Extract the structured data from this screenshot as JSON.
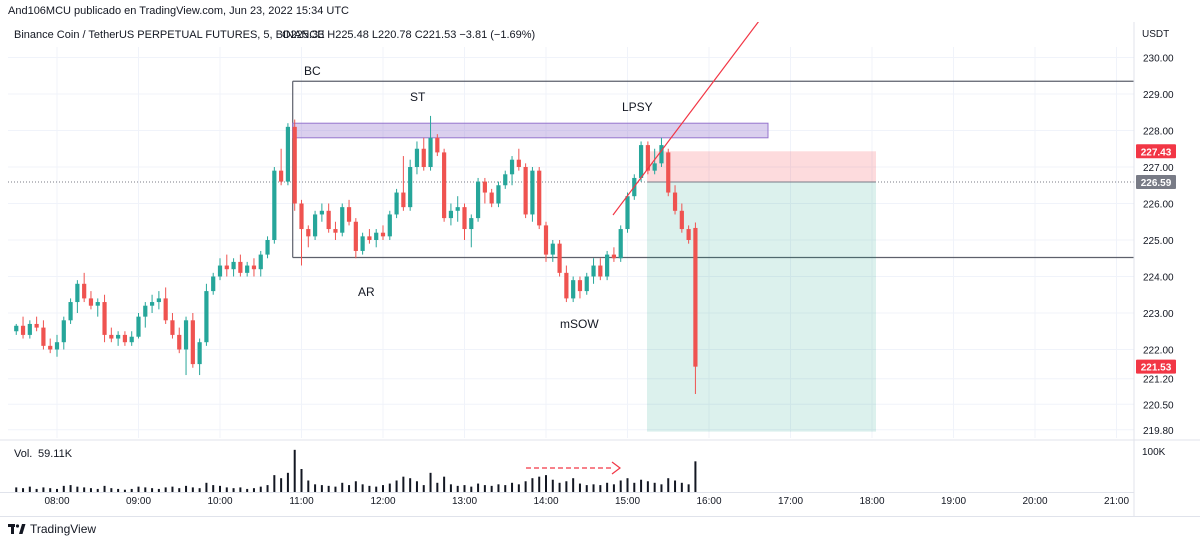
{
  "header": {
    "publisher": "And106MCU publicado en TradingView.com, Jun 23, 2022 15:34 UTC"
  },
  "legend": {
    "symbol": "Binance Coin / TetherUS PERPETUAL FUTURES, 5, BINANCE",
    "ohlc": "O225.33  H225.48  L220.78  C221.53  −3.81 (−1.69%)"
  },
  "currency": "USDT",
  "volume": {
    "label": "Vol.",
    "value": "59.11K",
    "scale_label": "100K"
  },
  "footer": {
    "brand": "TradingView"
  },
  "annotations": [
    "BC",
    "ST",
    "LPSY",
    "AR",
    "mSOW"
  ],
  "price_tags": {
    "upper": {
      "value": "227.43",
      "color": "#f23645"
    },
    "dotted": {
      "value": "226.59",
      "color": "#787b86"
    },
    "current": {
      "value": "221.53",
      "color": "#f23645"
    }
  },
  "colors": {
    "up": "#26a69a",
    "down": "#ef5350",
    "grid": "#f0f3fa",
    "text": "#131722"
  },
  "chart_data": {
    "type": "candlestick",
    "y_axis": {
      "ticks": [
        "219.80",
        "220.50",
        "221.20",
        "222.00",
        "223.00",
        "224.00",
        "225.00",
        "226.00",
        "227.00",
        "228.00",
        "229.00",
        "230.00"
      ],
      "ylim": [
        219.5,
        230.6
      ]
    },
    "x_axis": {
      "ticks": [
        "08:00",
        "09:00",
        "10:00",
        "11:00",
        "12:00",
        "13:00",
        "14:00",
        "15:00",
        "16:00",
        "17:00",
        "18:00",
        "19:00",
        "20:00",
        "21:00"
      ],
      "start_time": "07:30",
      "interval_minutes": 5
    },
    "candles": [
      [
        222.5,
        222.7,
        222.4,
        222.65
      ],
      [
        222.65,
        222.9,
        222.3,
        222.4
      ],
      [
        222.4,
        222.8,
        222.3,
        222.7
      ],
      [
        222.7,
        222.9,
        222.5,
        222.6
      ],
      [
        222.6,
        222.8,
        222.0,
        222.1
      ],
      [
        222.1,
        222.3,
        221.9,
        222.0
      ],
      [
        222.0,
        222.4,
        221.8,
        222.2
      ],
      [
        222.2,
        222.9,
        222.0,
        222.8
      ],
      [
        222.8,
        223.4,
        222.7,
        223.3
      ],
      [
        223.3,
        223.9,
        223.0,
        223.8
      ],
      [
        223.8,
        224.1,
        223.3,
        223.4
      ],
      [
        223.4,
        223.6,
        223.1,
        223.2
      ],
      [
        223.2,
        223.4,
        222.9,
        223.3
      ],
      [
        223.3,
        223.5,
        222.2,
        222.4
      ],
      [
        222.4,
        222.6,
        222.2,
        222.3
      ],
      [
        222.3,
        222.5,
        222.1,
        222.4
      ],
      [
        222.4,
        222.5,
        222.1,
        222.2
      ],
      [
        222.2,
        222.5,
        222.1,
        222.35
      ],
      [
        222.35,
        223.0,
        222.3,
        222.9
      ],
      [
        222.9,
        223.3,
        222.6,
        223.2
      ],
      [
        223.2,
        223.5,
        223.0,
        223.3
      ],
      [
        223.3,
        223.6,
        223.1,
        223.4
      ],
      [
        223.4,
        223.7,
        222.7,
        222.8
      ],
      [
        222.8,
        223.0,
        222.3,
        222.4
      ],
      [
        222.4,
        222.6,
        221.9,
        222.0
      ],
      [
        222.0,
        222.9,
        221.3,
        222.8
      ],
      [
        222.8,
        223.0,
        221.5,
        221.6
      ],
      [
        221.6,
        222.3,
        221.3,
        222.2
      ],
      [
        222.2,
        223.8,
        222.1,
        223.6
      ],
      [
        223.6,
        224.1,
        223.5,
        224.0
      ],
      [
        224.0,
        224.5,
        223.9,
        224.3
      ],
      [
        224.3,
        224.6,
        224.0,
        224.2
      ],
      [
        224.2,
        224.5,
        224.0,
        224.4
      ],
      [
        224.4,
        224.6,
        224.0,
        224.1
      ],
      [
        224.1,
        224.4,
        224.0,
        224.3
      ],
      [
        224.3,
        224.5,
        224.0,
        224.2
      ],
      [
        224.2,
        224.7,
        224.0,
        224.6
      ],
      [
        224.6,
        225.1,
        224.5,
        225.0
      ],
      [
        225.0,
        227.0,
        224.9,
        226.9
      ],
      [
        226.9,
        227.5,
        226.5,
        226.6
      ],
      [
        226.6,
        228.2,
        226.5,
        228.1
      ],
      [
        228.1,
        228.3,
        225.8,
        226.0
      ],
      [
        226.0,
        226.1,
        224.3,
        225.3
      ],
      [
        225.3,
        225.4,
        224.8,
        225.1
      ],
      [
        225.1,
        225.8,
        225.0,
        225.7
      ],
      [
        225.7,
        226.0,
        225.5,
        225.8
      ],
      [
        225.8,
        226.0,
        225.2,
        225.3
      ],
      [
        225.3,
        225.5,
        225.0,
        225.2
      ],
      [
        225.2,
        226.0,
        225.1,
        225.9
      ],
      [
        225.9,
        226.1,
        225.4,
        225.5
      ],
      [
        225.5,
        225.6,
        224.5,
        224.7
      ],
      [
        224.7,
        225.2,
        224.6,
        225.1
      ],
      [
        225.1,
        225.3,
        224.9,
        225.0
      ],
      [
        225.0,
        225.3,
        224.8,
        225.2
      ],
      [
        225.2,
        225.4,
        225.0,
        225.1
      ],
      [
        225.1,
        225.8,
        225.0,
        225.7
      ],
      [
        225.7,
        226.4,
        225.6,
        226.3
      ],
      [
        226.3,
        227.3,
        225.8,
        225.9
      ],
      [
        225.9,
        227.2,
        225.8,
        227.0
      ],
      [
        227.0,
        227.7,
        226.8,
        227.5
      ],
      [
        227.5,
        227.8,
        226.9,
        227.0
      ],
      [
        227.0,
        228.4,
        226.9,
        227.8
      ],
      [
        227.8,
        227.9,
        227.3,
        227.4
      ],
      [
        227.4,
        227.5,
        225.5,
        225.6
      ],
      [
        225.6,
        226.0,
        225.4,
        225.8
      ],
      [
        225.8,
        226.2,
        225.5,
        225.9
      ],
      [
        225.9,
        226.0,
        225.0,
        225.3
      ],
      [
        225.3,
        225.7,
        224.8,
        225.6
      ],
      [
        225.6,
        226.7,
        225.5,
        226.6
      ],
      [
        226.6,
        226.7,
        226.0,
        226.3
      ],
      [
        226.3,
        226.4,
        225.9,
        226.0
      ],
      [
        226.0,
        226.6,
        225.9,
        226.5
      ],
      [
        226.5,
        226.9,
        226.4,
        226.8
      ],
      [
        226.8,
        227.3,
        226.5,
        227.2
      ],
      [
        227.2,
        227.5,
        226.9,
        227.0
      ],
      [
        227.0,
        227.1,
        225.6,
        225.7
      ],
      [
        225.7,
        227.0,
        225.5,
        226.9
      ],
      [
        226.9,
        227.0,
        225.3,
        225.4
      ],
      [
        225.4,
        225.5,
        224.4,
        224.6
      ],
      [
        224.6,
        225.0,
        224.4,
        224.9
      ],
      [
        224.9,
        225.0,
        224.0,
        224.1
      ],
      [
        224.1,
        224.3,
        223.3,
        223.4
      ],
      [
        223.4,
        224.0,
        223.3,
        223.9
      ],
      [
        223.9,
        224.0,
        223.4,
        223.6
      ],
      [
        223.6,
        224.1,
        223.5,
        224.0
      ],
      [
        224.0,
        224.5,
        223.8,
        224.3
      ],
      [
        224.3,
        224.5,
        223.9,
        224.0
      ],
      [
        224.0,
        224.7,
        223.9,
        224.6
      ],
      [
        224.6,
        224.8,
        224.4,
        224.5
      ],
      [
        224.5,
        225.4,
        224.4,
        225.3
      ],
      [
        225.3,
        226.3,
        225.2,
        226.2
      ],
      [
        226.2,
        226.8,
        226.1,
        226.7
      ],
      [
        226.7,
        227.7,
        226.6,
        227.6
      ],
      [
        227.6,
        227.7,
        226.8,
        226.9
      ],
      [
        226.9,
        227.5,
        226.8,
        227.1
      ],
      [
        227.1,
        227.8,
        227.0,
        227.6
      ],
      [
        227.4,
        227.5,
        226.2,
        226.3
      ],
      [
        226.3,
        226.5,
        225.7,
        225.8
      ],
      [
        225.8,
        226.0,
        225.2,
        225.3
      ],
      [
        225.3,
        225.4,
        224.9,
        225.0
      ],
      [
        225.33,
        225.48,
        220.78,
        221.53
      ]
    ],
    "volume": [
      6,
      5,
      7,
      4,
      6,
      5,
      4,
      8,
      9,
      7,
      6,
      5,
      4,
      8,
      5,
      4,
      3,
      4,
      7,
      6,
      5,
      4,
      6,
      7,
      5,
      8,
      6,
      5,
      12,
      9,
      8,
      6,
      5,
      6,
      4,
      5,
      7,
      9,
      22,
      18,
      25,
      55,
      30,
      15,
      10,
      9,
      8,
      7,
      12,
      9,
      14,
      10,
      8,
      7,
      9,
      11,
      15,
      20,
      18,
      14,
      9,
      25,
      12,
      20,
      10,
      8,
      9,
      7,
      11,
      9,
      8,
      10,
      9,
      12,
      10,
      14,
      18,
      20,
      22,
      16,
      12,
      14,
      18,
      11,
      9,
      10,
      9,
      12,
      10,
      15,
      18,
      12,
      16,
      14,
      12,
      10,
      18,
      15,
      12,
      10,
      40
    ],
    "levels": {
      "bc": 229.35,
      "support": 224.52,
      "supply_zone": [
        227.8,
        228.2
      ]
    },
    "position": {
      "entry": 226.59,
      "stop": 227.43,
      "target": 219.75
    }
  }
}
